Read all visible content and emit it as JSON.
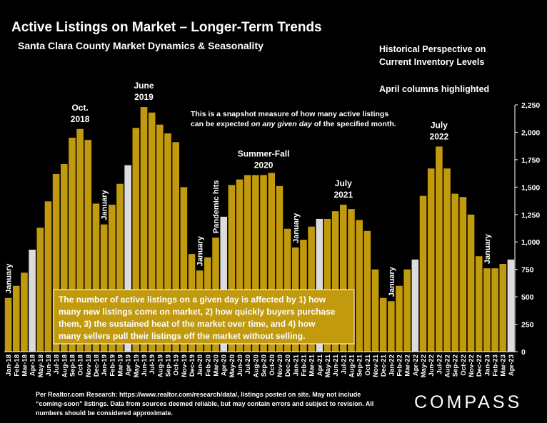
{
  "header": {
    "title": "Active Listings on Market – Longer-Term Trends",
    "subtitle": "Santa Clara County Market Dynamics & Seasonality",
    "side_note_1": "Historical Perspective on",
    "side_note_2": "Current Inventory Levels",
    "side_note_3": "April columns highlighted"
  },
  "footer": {
    "text": "Per Realtor.com Research: https://www.realtor.com/research/data/, listings posted on site. May not include “coming-soon” listings. Data from sources deemed reliable, but may contain errors and subject to revision. All numbers should be considered approximate.",
    "brand": "COMPASS"
  },
  "colors": {
    "bar": "#C29A0E",
    "april": "#DCDCDC",
    "background": "#000000",
    "text": "#FFFFFF"
  },
  "chart_data": {
    "type": "bar",
    "categories": [
      "Jan-18",
      "Feb-18",
      "Mar-18",
      "Apr-18",
      "May-18",
      "Jun-18",
      "Jul-18",
      "Aug-18",
      "Sep-18",
      "Oct-18",
      "Nov-18",
      "Dec-18",
      "Jan-19",
      "Feb-19",
      "Mar-19",
      "Apr-19",
      "May-19",
      "Jun-19",
      "Jul-19",
      "Aug-19",
      "Sep-19",
      "Oct-19",
      "Nov-19",
      "Dec-19",
      "Jan-20",
      "Feb-20",
      "Mar-20",
      "Apr-20",
      "May-20",
      "Jun-20",
      "Jul-20",
      "Aug-20",
      "Sep-20",
      "Oct-20",
      "Nov-20",
      "Dec-20",
      "Jan-21",
      "Feb-21",
      "Mar-21",
      "Apr-21",
      "May-21",
      "Jun-21",
      "Jul-21",
      "Aug-21",
      "Sep-21",
      "Oct-21",
      "Nov-21",
      "Dec-21",
      "Jan-22",
      "Feb-22",
      "Mar-22",
      "Apr-22",
      "May-22",
      "Jun-22",
      "Jul-22",
      "Aug-22",
      "Sep-22",
      "Oct-22",
      "Nov-22",
      "Dec-22",
      "Jan-23",
      "Feb-23",
      "Mar-23",
      "Apr-23"
    ],
    "values": [
      490,
      600,
      720,
      930,
      1130,
      1370,
      1620,
      1710,
      1950,
      2030,
      1930,
      1350,
      1160,
      1340,
      1530,
      1700,
      2040,
      2230,
      2180,
      2070,
      1990,
      1910,
      1500,
      890,
      740,
      860,
      1040,
      1230,
      1520,
      1570,
      1610,
      1610,
      1610,
      1630,
      1510,
      1120,
      950,
      1020,
      1140,
      1210,
      1210,
      1280,
      1340,
      1300,
      1200,
      1100,
      750,
      490,
      460,
      600,
      750,
      840,
      1420,
      1670,
      1870,
      1670,
      1440,
      1410,
      1250,
      870,
      760,
      760,
      800,
      840
    ],
    "highlighted": [
      "Apr-18",
      "Apr-19",
      "Apr-20",
      "Apr-21",
      "Apr-22",
      "Apr-23"
    ],
    "y_ticks": [
      "0",
      "250",
      "500",
      "750",
      "1,000",
      "1,250",
      "1,500",
      "1,750",
      "2,000",
      "2,250"
    ],
    "ylim": [
      0,
      2250
    ],
    "grid": false,
    "annotations": [
      {
        "text": "January",
        "category": "Jan-18",
        "rotated": true
      },
      {
        "text": "Oct.",
        "line2": "2018",
        "category": "Oct-18",
        "rotated": false
      },
      {
        "text": "January",
        "category": "Jan-19",
        "rotated": true
      },
      {
        "text": "June",
        "line2": "2019",
        "category": "Jun-19",
        "rotated": false
      },
      {
        "text": "January",
        "category": "Jan-20",
        "rotated": true
      },
      {
        "text": "Pandemic hits",
        "category": "Mar-20",
        "rotated": true
      },
      {
        "text": "Summer-Fall",
        "line2": "2020",
        "category": "Sep-20",
        "rotated": false
      },
      {
        "text": "January",
        "category": "Jan-21",
        "rotated": true
      },
      {
        "text": "July",
        "line2": "2021",
        "category": "Jul-21",
        "rotated": false
      },
      {
        "text": "January",
        "category": "Jan-22",
        "rotated": true
      },
      {
        "text": "July",
        "line2": "2022",
        "category": "Jul-22",
        "rotated": false
      },
      {
        "text": "January",
        "category": "Jan-23",
        "rotated": true
      }
    ],
    "snapshot_note": {
      "line1": "This is a snapshot measure of how many active listings",
      "line2_prefix": "can be expected ",
      "line2_italic": "on any given day",
      "line2_suffix": " of the specified month."
    },
    "callout": [
      "The number of active listings on a given day is affected by 1) how",
      "many new listings come on market, 2) how quickly buyers purchase",
      "them, 3) the sustained heat of the market over time, and 4) how",
      "many sellers pull their listings off the market without selling."
    ]
  }
}
